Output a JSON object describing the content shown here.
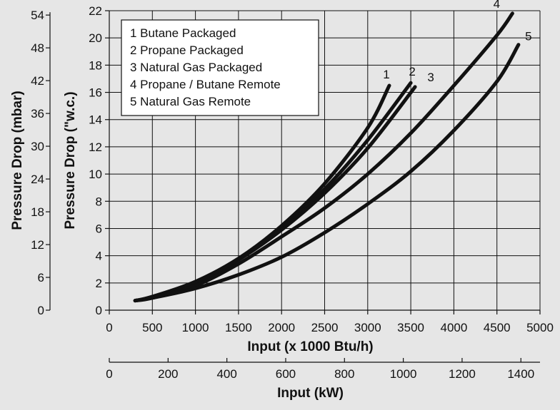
{
  "chart_data": {
    "type": "line",
    "xlabel": "Input (x 1000 Btu/h)",
    "ylabel": "Pressure Drop (\"w.c.)",
    "xlim": [
      0,
      5000
    ],
    "ylim": [
      0,
      22
    ],
    "grid": true,
    "legend_position": "top-left",
    "x_ticks": [
      "0",
      "500",
      "1000",
      "1500",
      "2000",
      "2500",
      "3000",
      "3500",
      "4000",
      "4500",
      "5000"
    ],
    "y_ticks": [
      "0",
      "2",
      "4",
      "6",
      "8",
      "10",
      "12",
      "14",
      "16",
      "18",
      "20",
      "22"
    ],
    "secondary_y_axis": {
      "label": "Pressure Drop (mbar)",
      "range": [
        0,
        54.8
      ],
      "ticks": [
        "0",
        "6",
        "12",
        "18",
        "24",
        "30",
        "36",
        "42",
        "48",
        "54"
      ]
    },
    "secondary_x_axis": {
      "label": "Input (kW)",
      "range": [
        0,
        1465
      ],
      "ticks": [
        "0",
        "200",
        "400",
        "600",
        "800",
        "1000",
        "1200",
        "1400"
      ]
    },
    "series": [
      {
        "name": "1 Butane Packaged",
        "label": "1",
        "x": [
          300,
          500,
          1000,
          1500,
          2000,
          2500,
          3000,
          3250
        ],
        "y": [
          0.7,
          1.0,
          2.1,
          3.8,
          6.2,
          9.3,
          13.4,
          16.5
        ]
      },
      {
        "name": "2 Propane Packaged",
        "label": "2",
        "x": [
          300,
          500,
          1000,
          1500,
          2000,
          2500,
          3000,
          3500
        ],
        "y": [
          0.7,
          0.95,
          2.0,
          3.7,
          6.0,
          8.9,
          12.5,
          16.7
        ]
      },
      {
        "name": "3 Natural Gas Packaged",
        "label": "3",
        "x": [
          300,
          500,
          1000,
          1500,
          2000,
          2500,
          3000,
          3550
        ],
        "y": [
          0.7,
          0.95,
          2.0,
          3.7,
          5.9,
          8.6,
          11.9,
          16.4
        ]
      },
      {
        "name": "4 Propane / Butane Remote",
        "label": "4",
        "x": [
          300,
          500,
          1000,
          1500,
          2000,
          2500,
          3000,
          3500,
          4000,
          4500,
          4680
        ],
        "y": [
          0.7,
          0.9,
          1.8,
          3.4,
          5.4,
          7.5,
          10.0,
          13.0,
          16.5,
          20.2,
          21.8
        ]
      },
      {
        "name": "5 Natural Gas Remote",
        "label": "5",
        "x": [
          300,
          500,
          1000,
          1500,
          2000,
          2500,
          3000,
          3500,
          4000,
          4500,
          4750
        ],
        "y": [
          0.7,
          0.9,
          1.6,
          2.6,
          3.9,
          5.7,
          7.8,
          10.2,
          13.2,
          16.8,
          19.5
        ]
      }
    ]
  }
}
